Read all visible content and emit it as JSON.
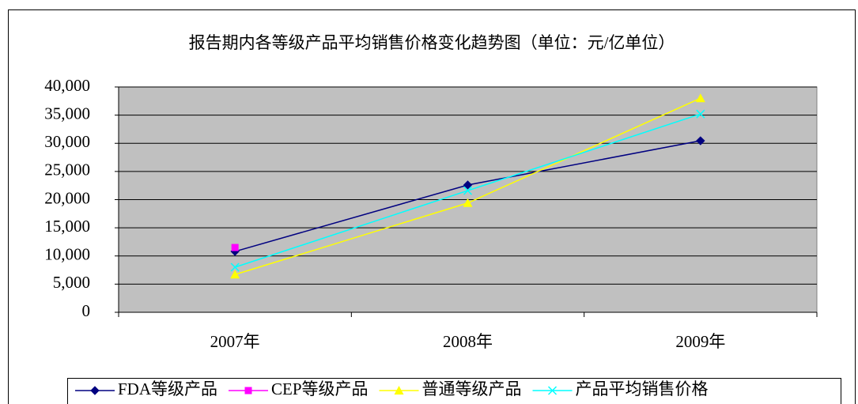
{
  "chart_data": {
    "type": "line",
    "title": "报告期内各等级产品平均销售价格变化趋势图（单位：元/亿单位）",
    "categories": [
      "2007年",
      "2008年",
      "2009年"
    ],
    "series": [
      {
        "name": "FDA等级产品",
        "color": "#000080",
        "marker": "diamond",
        "values": [
          10800,
          22600,
          30450
        ]
      },
      {
        "name": "CEP等级产品",
        "color": "#FF00FF",
        "marker": "square",
        "values": [
          11500,
          null,
          null
        ]
      },
      {
        "name": "普通等级产品",
        "color": "#FFFF00",
        "marker": "triangle",
        "values": [
          6700,
          19400,
          38000
        ]
      },
      {
        "name": "产品平均销售价格",
        "color": "#00FFFF",
        "marker": "x",
        "values": [
          8000,
          21600,
          35200
        ]
      }
    ],
    "ylim": [
      0,
      40000
    ],
    "yticks": [
      0,
      {
        "value": 5000,
        "label": "5,000"
      },
      {
        "value": 10000,
        "label": "10,000"
      },
      {
        "value": 15000,
        "label": "15,000"
      },
      {
        "value": 20000,
        "label": "20,000"
      },
      {
        "value": 25000,
        "label": "25,000"
      },
      {
        "value": 30000,
        "label": "30,000"
      },
      {
        "value": 35000,
        "label": "35,000"
      },
      {
        "value": 40000,
        "label": "40,000"
      }
    ],
    "grid": true,
    "legend": "bottom",
    "plot_background": "#C0C0C0"
  }
}
